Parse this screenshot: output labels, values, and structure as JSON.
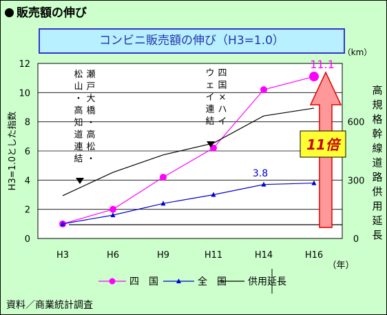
{
  "heading": "販売額の伸び",
  "source": "資料／商業統計調査",
  "chart_data": {
    "type": "line",
    "title": "コンビニ販売額の伸び（H3=1.0）",
    "categories": [
      "H3",
      "H6",
      "H9",
      "H11",
      "H14",
      "H16"
    ],
    "x_unit": "（年）",
    "y_left_label": "H3=1.0とした指数",
    "y_left_ticks": [
      "0",
      "2",
      "4",
      "6",
      "8",
      "10",
      "12"
    ],
    "y_left_range": [
      0,
      12
    ],
    "y_right_label": "高規格幹線道路供用延長",
    "y_right_unit": "（km）",
    "y_right_ticks": [
      "0",
      "300",
      "600"
    ],
    "y_right_range": [
      0,
      900
    ],
    "grid": true,
    "legend": "bottom",
    "series": [
      {
        "name": "四国",
        "axis": "left",
        "color": "#ff00ff",
        "marker": "circle",
        "values": [
          1.0,
          2.0,
          4.2,
          6.2,
          10.2,
          11.1
        ]
      },
      {
        "name": "全国",
        "axis": "left",
        "color": "#0000cc",
        "marker": "triangle",
        "values": [
          1.0,
          1.6,
          2.4,
          3.0,
          3.7,
          3.8
        ]
      },
      {
        "name": "供用延長",
        "axis": "right",
        "color": "#000000",
        "marker": "none",
        "values": [
          220,
          340,
          430,
          490,
          630,
          670
        ]
      }
    ],
    "data_labels": {
      "shikoku_last": "11.1",
      "zenkoku_last": "3.8"
    },
    "annotation_ratio": "11倍",
    "events": [
      {
        "x": "H3",
        "text": "瀬戸大橋・高松・松山・高知道連結"
      },
      {
        "x": "H11",
        "text": "四国×ハイウェイ連結"
      }
    ]
  }
}
